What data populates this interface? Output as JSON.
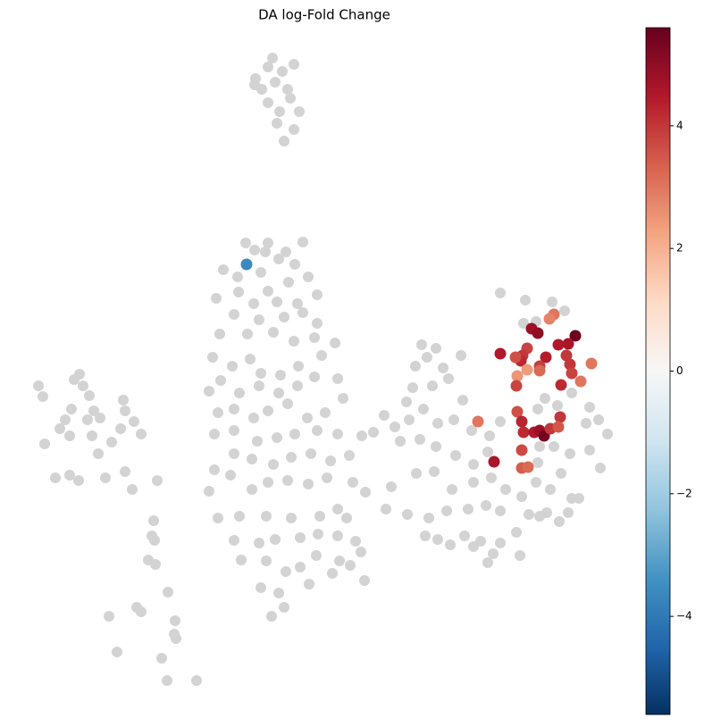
{
  "chart_data": {
    "type": "scatter",
    "title": "DA log-Fold Change",
    "xlim": [
      0,
      700
    ],
    "ylim": [
      800,
      10
    ],
    "colormap": "RdBu_r",
    "clim": [
      -5.6,
      5.6
    ],
    "cticks": [
      {
        "value": -4,
        "label": "−4"
      },
      {
        "value": -2,
        "label": "−2"
      },
      0,
      2,
      4
    ],
    "series": [
      {
        "color": "#d3d3d3",
        "x": [
          305,
          300,
          329,
          316,
          286,
          308,
          293,
          300,
          325,
          313,
          335,
          329,
          318,
          310,
          285,
          322,
          43,
          48,
          89,
          83,
          93,
          100,
          105,
          98,
          112,
          138,
          140,
          150,
          158,
          135,
          125,
          103,
          110,
          80,
          73,
          67,
          78,
          50,
          62,
          78,
          88,
          118,
          140,
          148,
          176,
          172,
          170,
          173,
          166,
          174,
          188,
          153,
          158,
          122,
          196,
          195,
          197,
          131,
          181,
          187,
          220,
          275,
          300,
          339,
          285,
          297,
          320,
          330,
          312,
          250,
          266,
          292,
          345,
          323,
          300,
          267,
          242,
          284,
          310,
          333,
          355,
          262,
          290,
          318,
          339,
          355,
          246,
          277,
          306,
          329,
          352,
          375,
          238,
          260,
          280,
          292,
          314,
          334,
          360,
          247,
          268,
          290,
          312,
          333,
          352,
          378,
          234,
          244,
          262,
          284,
          300,
          322,
          344,
          364,
          384,
          240,
          262,
          288,
          310,
          330,
          355,
          378,
          405,
          262,
          282,
          306,
          326,
          348,
          370,
          391,
          240,
          258,
          282,
          300,
          322,
          345,
          366,
          395,
          409,
          234,
          244,
          268,
          298,
          326,
          358,
          378,
          388,
          262,
          290,
          308,
          336,
          356,
          378,
          398,
          404,
          270,
          298,
          320,
          336,
          354,
          380,
          392,
          292,
          312,
          346,
          372,
          408,
          304,
          318,
          418,
          430,
          442,
          458,
          472,
          488,
          478,
          465,
          516,
          496,
          462,
          484,
          502,
          518,
          455,
          474,
          490,
          508,
          528,
          448,
          470,
          488,
          510,
          530,
          546,
          466,
          486,
          506,
          530,
          550,
          566,
          438,
          432,
          456,
          480,
          500,
          524,
          544,
          560,
          584,
          600,
          616,
          628,
          640,
          648,
          612,
          604,
          592,
          626,
          636,
          520,
          538,
          552,
          530,
          504,
          490,
          476,
          560,
          578,
          582,
          546,
          560,
          588,
          618,
          632,
          600,
          586,
          610,
          602,
          624,
          640,
          660,
          656,
          670,
          680,
          660,
          672,
          638,
          620,
          604,
          602,
          548,
          560
        ],
        "y": [
          65,
          75,
          72,
          80,
          88,
          92,
          100,
          115,
          110,
          125,
          125,
          145,
          158,
          138,
          95,
          100,
          432,
          444,
          419,
          425,
          432,
          443,
          460,
          470,
          468,
          448,
          460,
          472,
          486,
          480,
          495,
          488,
          508,
          458,
          470,
          480,
          488,
          497,
          535,
          532,
          538,
          535,
          528,
          548,
          538,
          583,
          600,
          605,
          627,
          632,
          663,
          680,
          685,
          690,
          695,
          710,
          715,
          730,
          737,
          762,
          762,
          272,
          272,
          271,
          280,
          282,
          282,
          296,
          290,
          302,
          310,
          305,
          310,
          316,
          326,
          327,
          334,
          340,
          338,
          340,
          330,
          352,
          358,
          355,
          350,
          362,
          374,
          374,
          372,
          382,
          378,
          384,
          400,
          410,
          402,
          418,
          420,
          410,
          398,
          426,
          440,
          432,
          440,
          432,
          422,
          424,
          438,
          462,
          458,
          468,
          460,
          452,
          468,
          462,
          446,
          486,
          482,
          494,
          490,
          486,
          482,
          486,
          488,
          508,
          514,
          520,
          512,
          508,
          516,
          510,
          526,
          532,
          548,
          540,
          538,
          542,
          535,
          540,
          551,
          550,
          580,
          578,
          578,
          580,
          578,
          570,
          580,
          605,
          608,
          604,
          602,
          598,
          600,
          606,
          618,
          627,
          628,
          640,
          635,
          622,
          628,
          633,
          658,
          664,
          654,
          642,
          650,
          690,
          680,
          484,
          465,
          478,
          470,
          386,
          390,
          400,
          410,
          398,
          412,
          434,
          432,
          424,
          448,
          450,
          458,
          474,
          470,
          482,
          494,
          492,
          500,
          510,
          520,
          506,
          530,
          528,
          548,
          540,
          535,
          548,
          545,
          570,
          576,
          580,
          572,
          570,
          566,
          572,
          556,
          540,
          548,
          530,
          558,
          558,
          574,
          578,
          576,
          584,
          574,
          600,
          606,
          620,
          612,
          610,
          604,
          600,
          608,
          596,
          622,
          630,
          328,
          336,
          338,
          348,
          360,
          362,
          446,
          458,
          454,
          440,
          456,
          474,
          470,
          486,
          504,
          524,
          508,
          500,
          500,
          518,
          488,
          472
        ]
      },
      {
        "x": [
          276,
          595,
          602,
          620,
          615,
          644,
          636,
          625,
          611,
          590,
          585,
          583,
          560,
          577,
          634,
          638,
          640,
          604,
          604,
          590,
          579,
          578,
          662,
          650,
          628,
          579,
          584,
          586,
          598,
          604,
          609,
          616,
          627,
          625,
          535,
          553,
          584,
          584,
          591
        ],
        "y": [
          296,
          368,
          373,
          352,
          357,
          376,
          385,
          386,
          400,
          390,
          398,
          404,
          396,
          400,
          398,
          408,
          418,
          410,
          415,
          414,
          421,
          432,
          407,
          427,
          431,
          461,
          472,
          484,
          484,
          482,
          488,
          480,
          467,
          478,
          472,
          517,
          504,
          524,
          523
        ],
        "values": [
          -3.6,
          4.8,
          5.0,
          3.0,
          2.8,
          5.5,
          4.6,
          4.5,
          4.4,
          3.8,
          4.0,
          4.2,
          4.5,
          3.6,
          4.0,
          4.0,
          3.8,
          3.9,
          3.2,
          2.4,
          2.5,
          3.8,
          3.0,
          3.0,
          4.2,
          3.6,
          4.3,
          4.2,
          4.5,
          4.8,
          5.4,
          4.0,
          4.0,
          3.5,
          3.0,
          4.6,
          3.7,
          3.4,
          3.2
        ]
      }
    ]
  }
}
